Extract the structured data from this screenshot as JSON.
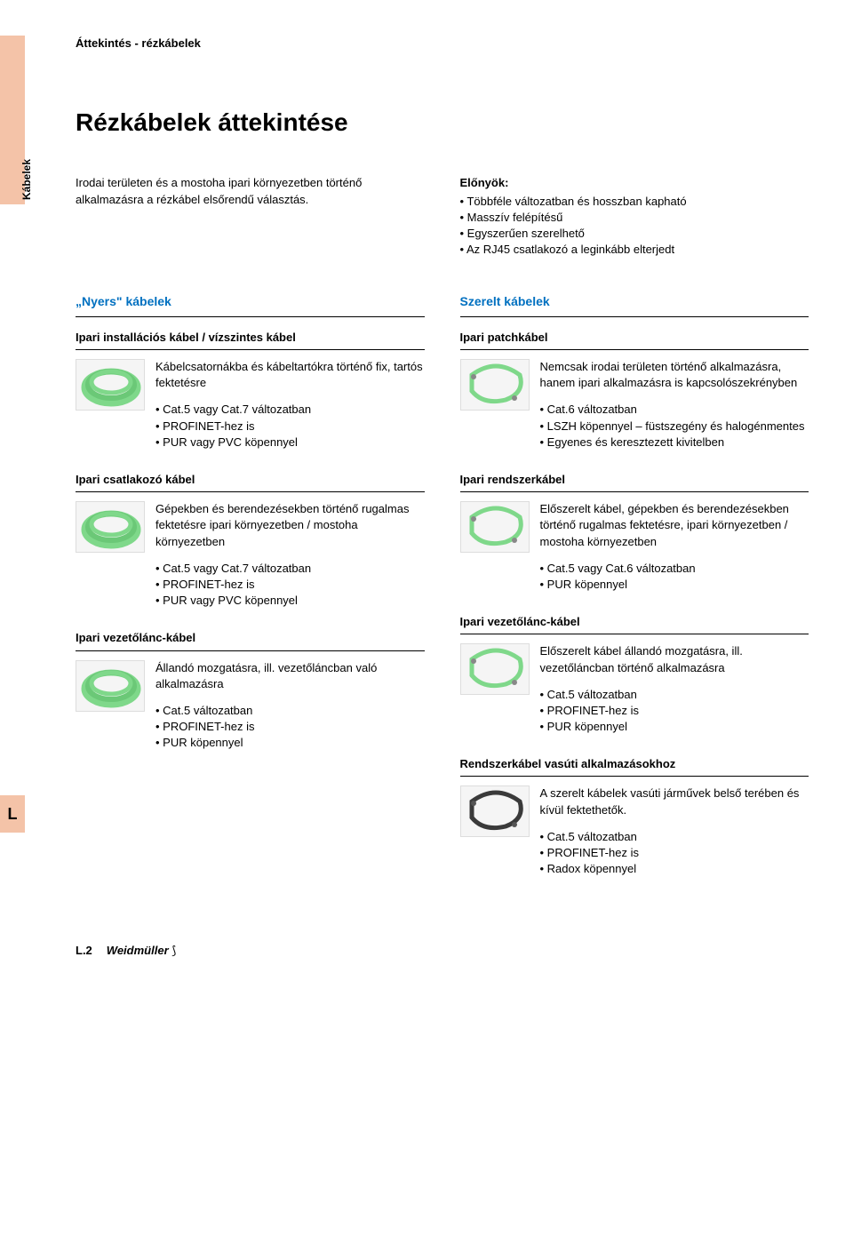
{
  "colors": {
    "side_tab": "#f4c3a8",
    "col_header": "#0070c0",
    "cable_green": "#7fd88a",
    "cable_dark": "#3a3a3a"
  },
  "breadcrumb": "Áttekintés - rézkábelek",
  "side_tab_label": "Kábelek",
  "side_letter": "L",
  "title": "Rézkábelek áttekintése",
  "intro_left": "Irodai területen és a mostoha ipari környezetben történő alkalmazásra a rézkábel elsőrendű választás.",
  "advantages_title": "Előnyök:",
  "advantages": [
    "Többféle változatban és hosszban kapható",
    "Masszív felépítésű",
    "Egyszerűen szerelhető",
    "Az RJ45 csatlakozó a leginkább elterjedt"
  ],
  "left_header": "„Nyers\" kábelek",
  "right_header": "Szerelt kábelek",
  "left_blocks": [
    {
      "title": "Ipari installációs kábel / vízszintes kábel",
      "thumb": "coil-green",
      "desc": "Kábelcsatornákba és kábeltartókra történő fix, tartós fektetésre",
      "specs": [
        "Cat.5 vagy Cat.7 változatban",
        "PROFINET-hez is",
        "PUR vagy PVC köpennyel"
      ]
    },
    {
      "title": "Ipari csatlakozó kábel",
      "thumb": "coil-green",
      "desc": "Gépekben és berendezésekben történő rugalmas fektetésre ipari környezetben / mostoha környezetben",
      "specs": [
        "Cat.5 vagy Cat.7 változatban",
        "PROFINET-hez is",
        "PUR vagy PVC köpennyel"
      ]
    },
    {
      "title": "Ipari vezetőlánc-kábel",
      "thumb": "coil-green",
      "desc": "Állandó mozgatásra, ill. vezetőláncban való alkalmazásra",
      "specs": [
        "Cat.5 változatban",
        "PROFINET-hez is",
        "PUR köpennyel"
      ]
    }
  ],
  "right_blocks": [
    {
      "title": "Ipari patchkábel",
      "thumb": "loop-green",
      "desc": "Nemcsak irodai területen történő alkalmazásra, hanem ipari alkalmazásra is kapcsolószekrényben",
      "specs": [
        "Cat.6 változatban",
        "LSZH köpennyel – füstszegény és halogénmentes",
        "Egyenes és keresztezett kivitelben"
      ]
    },
    {
      "title": "Ipari rendszerkábel",
      "thumb": "loop-green",
      "desc": "Előszerelt kábel, gépekben és berendezésekben történő rugalmas fektetésre, ipari környezetben / mostoha környezetben",
      "specs": [
        "Cat.5 vagy Cat.6 változatban",
        "PUR köpennyel"
      ]
    },
    {
      "title": "Ipari vezetőlánc-kábel",
      "thumb": "loop-green",
      "desc": "Előszerelt kábel állandó mozgatásra, ill. vezetőláncban történő alkalmazásra",
      "specs": [
        "Cat.5 változatban",
        "PROFINET-hez is",
        "PUR köpennyel"
      ]
    },
    {
      "title": "Rendszerkábel vasúti alkalmazásokhoz",
      "thumb": "loop-dark",
      "desc": "A szerelt kábelek vasúti járművek belső terében és kívül fektethetők.",
      "specs": [
        "Cat.5 változatban",
        "PROFINET-hez is",
        "Radox köpennyel"
      ]
    }
  ],
  "footer": {
    "page": "L.2",
    "brand": "Weidmüller",
    "mark": "⟆"
  }
}
